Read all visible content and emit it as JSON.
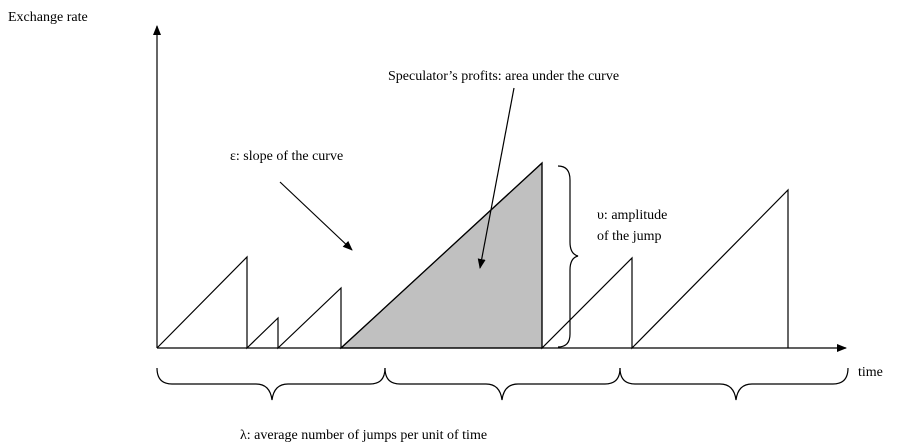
{
  "axes": {
    "y_label": "Exchange rate",
    "x_label": "time"
  },
  "annotations": {
    "profits": "Speculator’s profits: area under the curve",
    "slope": "ε: slope of the curve",
    "amplitude_line1": "υ: amplitude",
    "amplitude_line2": "of the jump",
    "frequency": "λ: average number of jumps per unit of time"
  }
}
